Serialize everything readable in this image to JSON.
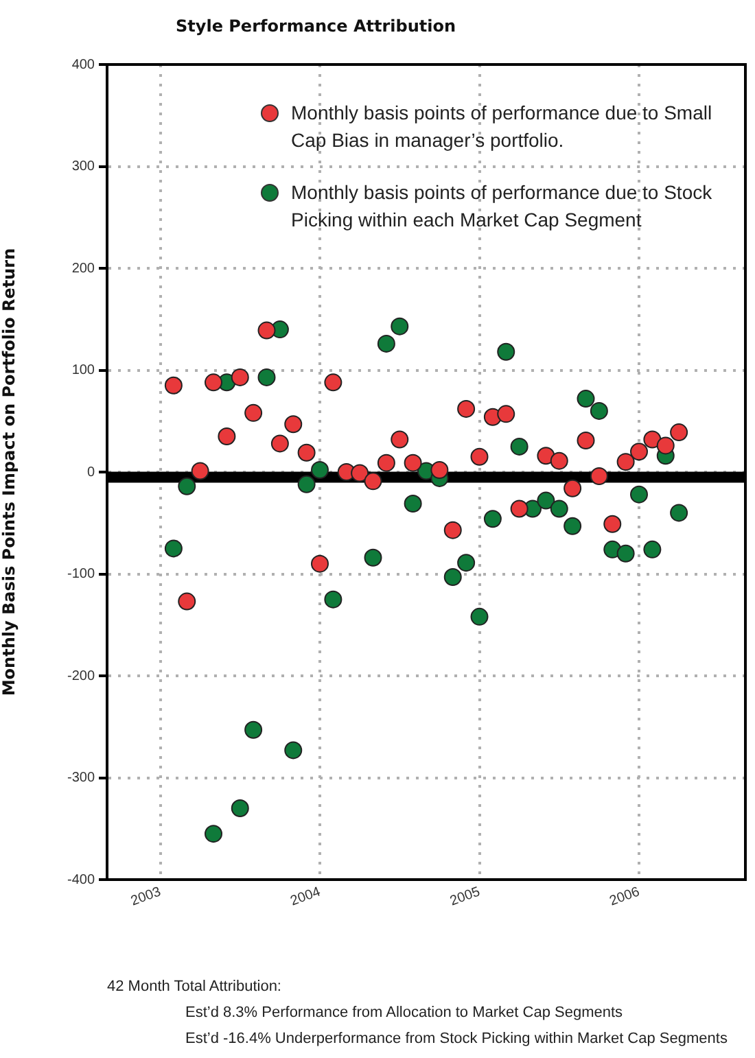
{
  "chart_data": {
    "type": "scatter",
    "title": "Style Performance Attribution",
    "ylabel": "Monthly Basis Points Impact on Portfolio Return",
    "x": [
      "2003-02",
      "2003-03",
      "2003-04",
      "2003-05",
      "2003-06",
      "2003-07",
      "2003-08",
      "2003-09",
      "2003-10",
      "2003-11",
      "2003-12",
      "2004-01",
      "2004-02",
      "2004-03",
      "2004-04",
      "2004-05",
      "2004-06",
      "2004-07",
      "2004-08",
      "2004-09",
      "2004-10",
      "2004-11",
      "2004-12",
      "2005-01",
      "2005-02",
      "2005-03",
      "2005-04",
      "2005-05",
      "2005-06",
      "2005-07",
      "2005-08",
      "2005-09",
      "2005-10",
      "2005-11",
      "2005-12",
      "2006-01",
      "2006-02",
      "2006-03",
      "2006-04"
    ],
    "series": [
      {
        "name": "Monthly basis points of performance due to Small Cap Bias in manager’s portfolio.",
        "color": "#e8393b",
        "values": [
          85,
          -127,
          1,
          88,
          35,
          93,
          58,
          139,
          28,
          47,
          19,
          -90,
          88,
          0,
          -1,
          -9,
          9,
          32,
          9,
          null,
          2,
          -57,
          62,
          15,
          54,
          57,
          -36,
          null,
          16,
          11,
          -16,
          31,
          -4,
          -51,
          10,
          20,
          32,
          26,
          39
        ]
      },
      {
        "name": "Monthly basis points of performance due to Stock Picking within each Market Cap Segment",
        "color": "#0f7a3a",
        "values": [
          -75,
          -14,
          null,
          -355,
          88,
          -330,
          -253,
          93,
          140,
          -273,
          -12,
          2,
          -125,
          null,
          null,
          -84,
          126,
          143,
          -31,
          1,
          -6,
          -103,
          -89,
          -142,
          -46,
          118,
          25,
          -36,
          -28,
          -36,
          -53,
          72,
          60,
          -76,
          -80,
          -22,
          -76,
          16,
          -40
        ]
      }
    ],
    "xlim": [
      "2002-09",
      "2006-09"
    ],
    "xticks": [
      "2003",
      "2004",
      "2005",
      "2006"
    ],
    "ylim": [
      -400,
      400
    ],
    "yticks": [
      -400,
      -300,
      -200,
      -100,
      0,
      100,
      200,
      300,
      400
    ],
    "ref_lines": [
      {
        "axis": "y",
        "value": -5,
        "color": "#000000"
      }
    ],
    "grid": true,
    "legend": "top right",
    "marker": "circle",
    "annotations": [
      "42 Month Total Attribution:",
      "Est’d 8.3% Performance from Allocation to Market Cap Segments",
      "Est’d -16.4% Underperformance from Stock Picking within Market Cap Segments"
    ]
  }
}
